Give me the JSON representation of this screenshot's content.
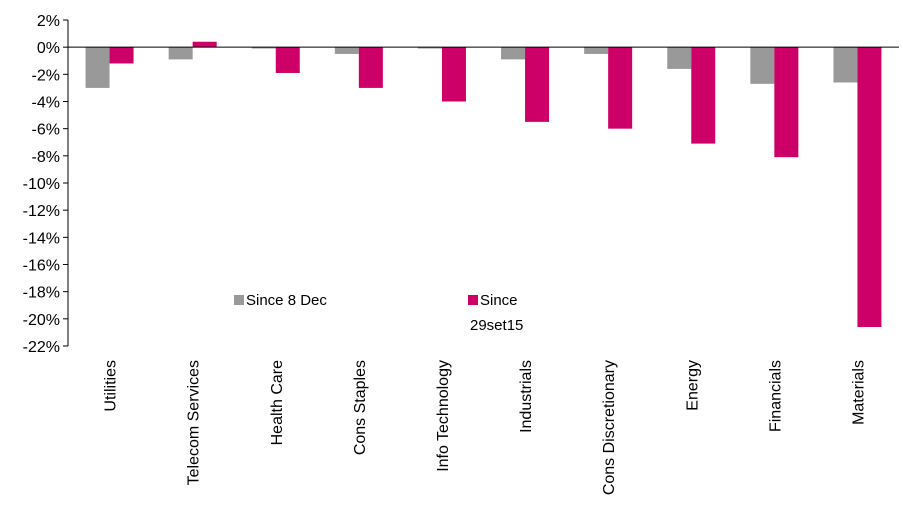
{
  "chart_data": {
    "type": "bar",
    "categories": [
      "Utilities",
      "Telecom Services",
      "Health Care",
      "Cons Staples",
      "Info Technology",
      "Industrials",
      "Cons Discretionary",
      "Energy",
      "Financials",
      "Materials"
    ],
    "series": [
      {
        "name": "Since 8 Dec",
        "color": "#999999",
        "values": [
          -3.0,
          -0.9,
          -0.1,
          -0.5,
          -0.1,
          -0.9,
          -0.5,
          -1.6,
          -2.7,
          -2.6
        ]
      },
      {
        "name_lines": [
          "Since",
          "29set15"
        ],
        "color": "#cc0066",
        "values": [
          -1.2,
          0.4,
          -1.9,
          -3.0,
          -4.0,
          -5.5,
          -6.0,
          -7.1,
          -8.1,
          -20.6
        ]
      }
    ],
    "ylim": [
      -22,
      2
    ],
    "yticks": [
      "2%",
      "0%",
      "-2%",
      "-4%",
      "-6%",
      "-8%",
      "-10%",
      "-12%",
      "-14%",
      "-16%",
      "-18%",
      "-20%",
      "-22%"
    ],
    "ytick_values": [
      2,
      0,
      -2,
      -4,
      -6,
      -8,
      -10,
      -12,
      -14,
      -16,
      -18,
      -20,
      -22
    ],
    "grid": false,
    "legend_position": "inside-lower-center"
  }
}
